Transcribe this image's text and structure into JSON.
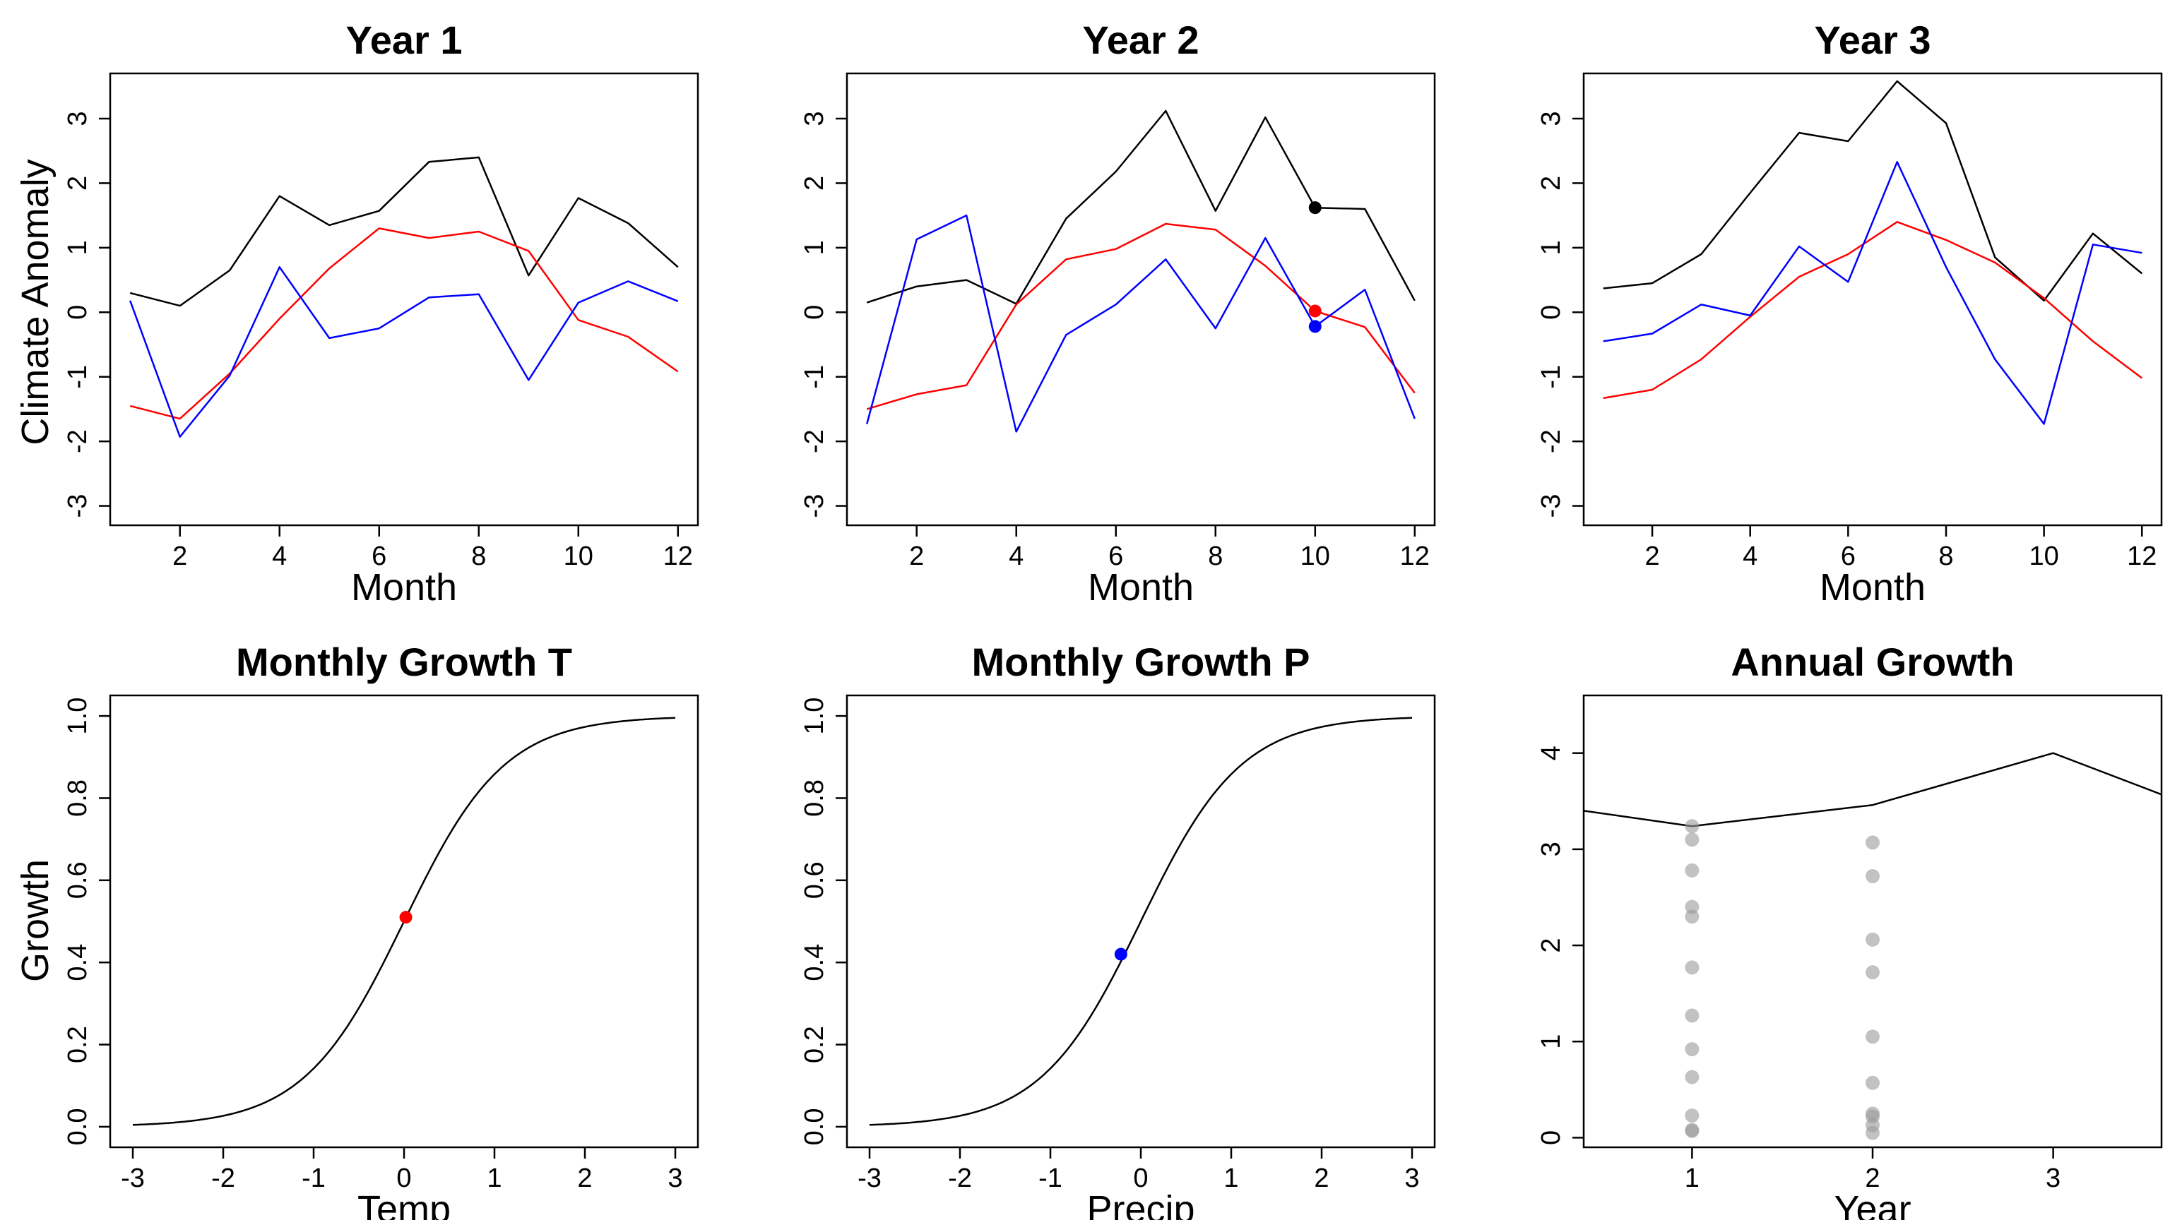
{
  "figure": {
    "ylabel_top": "Climate Anomaly",
    "ylabel_bottom": "Growth"
  },
  "chart_data": [
    {
      "type": "line",
      "title": "Year 1",
      "xlabel": "Month",
      "ylabel": "Climate Anomaly",
      "xlim": [
        0.6,
        12.4
      ],
      "ylim": [
        -3.3,
        3.7
      ],
      "xticks": [
        2,
        4,
        6,
        8,
        10,
        12
      ],
      "yticks": [
        -3,
        -2,
        -1,
        0,
        1,
        2,
        3
      ],
      "x": [
        1,
        2,
        3,
        4,
        5,
        6,
        7,
        8,
        9,
        10,
        11,
        12
      ],
      "series": [
        {
          "color": "#000000",
          "values": [
            0.3,
            0.1,
            0.65,
            1.8,
            1.35,
            1.57,
            2.33,
            2.4,
            0.57,
            1.77,
            1.38,
            0.7
          ]
        },
        {
          "color": "#ff0000",
          "values": [
            -1.45,
            -1.65,
            -0.95,
            -0.1,
            0.68,
            1.3,
            1.15,
            1.25,
            0.95,
            -0.12,
            -0.38,
            -0.92
          ]
        },
        {
          "color": "#0000ff",
          "values": [
            0.18,
            -1.93,
            -0.98,
            0.7,
            -0.4,
            -0.25,
            0.23,
            0.28,
            -1.05,
            0.15,
            0.48,
            0.17
          ]
        }
      ],
      "points": []
    },
    {
      "type": "line",
      "title": "Year 2",
      "xlabel": "Month",
      "ylabel": "",
      "xlim": [
        0.6,
        12.4
      ],
      "ylim": [
        -3.3,
        3.7
      ],
      "xticks": [
        2,
        4,
        6,
        8,
        10,
        12
      ],
      "yticks": [
        -3,
        -2,
        -1,
        0,
        1,
        2,
        3
      ],
      "x": [
        1,
        2,
        3,
        4,
        5,
        6,
        7,
        8,
        9,
        10,
        11,
        12
      ],
      "series": [
        {
          "color": "#000000",
          "values": [
            0.15,
            0.4,
            0.5,
            0.13,
            1.45,
            2.18,
            3.12,
            1.57,
            3.02,
            1.62,
            1.6,
            0.18
          ]
        },
        {
          "color": "#ff0000",
          "values": [
            -1.5,
            -1.27,
            -1.13,
            0.12,
            0.82,
            0.98,
            1.37,
            1.28,
            0.72,
            0.02,
            -0.23,
            -1.25
          ]
        },
        {
          "color": "#0000ff",
          "values": [
            -1.73,
            1.13,
            1.5,
            -1.85,
            -0.35,
            0.12,
            0.82,
            -0.25,
            1.15,
            -0.22,
            0.35,
            -1.65
          ]
        }
      ],
      "points": [
        {
          "x": 10,
          "y": 1.62,
          "color": "#000000"
        },
        {
          "x": 10,
          "y": 0.02,
          "color": "#ff0000"
        },
        {
          "x": 10,
          "y": -0.22,
          "color": "#0000ff"
        }
      ]
    },
    {
      "type": "line",
      "title": "Year 3",
      "xlabel": "Month",
      "ylabel": "",
      "xlim": [
        0.6,
        12.4
      ],
      "ylim": [
        -3.3,
        3.7
      ],
      "xticks": [
        2,
        4,
        6,
        8,
        10,
        12
      ],
      "yticks": [
        -3,
        -2,
        -1,
        0,
        1,
        2,
        3
      ],
      "x": [
        1,
        2,
        3,
        4,
        5,
        6,
        7,
        8,
        9,
        10,
        11,
        12
      ],
      "series": [
        {
          "color": "#000000",
          "values": [
            0.37,
            0.45,
            0.9,
            1.85,
            2.78,
            2.65,
            3.58,
            2.93,
            0.85,
            0.18,
            1.22,
            0.6
          ]
        },
        {
          "color": "#ff0000",
          "values": [
            -1.33,
            -1.2,
            -0.73,
            -0.07,
            0.55,
            0.9,
            1.4,
            1.12,
            0.77,
            0.22,
            -0.45,
            -1.02
          ]
        },
        {
          "color": "#0000ff",
          "values": [
            -0.45,
            -0.33,
            0.12,
            -0.05,
            1.02,
            0.47,
            2.33,
            0.7,
            -0.73,
            -1.73,
            1.05,
            0.92
          ]
        }
      ],
      "points": []
    },
    {
      "type": "line",
      "title": "Monthly Growth T",
      "xlabel": "Temp",
      "ylabel": "Growth",
      "xlim": [
        -3.25,
        3.25
      ],
      "ylim": [
        -0.05,
        1.05
      ],
      "xticks": [
        -3,
        -2,
        -1,
        0,
        1,
        2,
        3
      ],
      "yticks": [
        0.0,
        0.2,
        0.4,
        0.6,
        0.8,
        1.0
      ],
      "ytick_labels": [
        "0.0",
        "0.2",
        "0.4",
        "0.6",
        "0.8",
        "1.0"
      ],
      "curve": {
        "model": "logistic",
        "slope": 1.8,
        "from": -3,
        "to": 3
      },
      "points": [
        {
          "x": 0.02,
          "y": 0.51,
          "color": "#ff0000"
        }
      ]
    },
    {
      "type": "line",
      "title": "Monthly Growth P",
      "xlabel": "Precip",
      "ylabel": "",
      "xlim": [
        -3.25,
        3.25
      ],
      "ylim": [
        -0.05,
        1.05
      ],
      "xticks": [
        -3,
        -2,
        -1,
        0,
        1,
        2,
        3
      ],
      "yticks": [
        0.0,
        0.2,
        0.4,
        0.6,
        0.8,
        1.0
      ],
      "ytick_labels": [
        "0.0",
        "0.2",
        "0.4",
        "0.6",
        "0.8",
        "1.0"
      ],
      "curve": {
        "model": "logistic",
        "slope": 1.8,
        "from": -3,
        "to": 3
      },
      "points": [
        {
          "x": -0.22,
          "y": 0.42,
          "color": "#0000ff"
        }
      ]
    },
    {
      "type": "scatter",
      "title": "Annual Growth",
      "xlabel": "Year",
      "ylabel": "",
      "xlim": [
        0.4,
        3.6
      ],
      "ylim": [
        -0.1,
        4.6
      ],
      "xticks": [
        1,
        2,
        3
      ],
      "yticks": [
        0,
        1,
        2,
        3,
        4
      ],
      "line": {
        "color": "#000000",
        "x": [
          0.4,
          1,
          2,
          3,
          3.6
        ],
        "y": [
          3.4,
          3.24,
          3.46,
          4.0,
          3.57
        ]
      },
      "scatter": {
        "color": "#999999",
        "points": [
          [
            1,
            3.24
          ],
          [
            1,
            3.1
          ],
          [
            1,
            2.78
          ],
          [
            1,
            2.4
          ],
          [
            1,
            2.3
          ],
          [
            1,
            1.77
          ],
          [
            1,
            1.27
          ],
          [
            1,
            0.92
          ],
          [
            1,
            0.63
          ],
          [
            1,
            0.23
          ],
          [
            1,
            0.08
          ],
          [
            1,
            0.07
          ],
          [
            2,
            3.07
          ],
          [
            2,
            2.72
          ],
          [
            2,
            2.06
          ],
          [
            2,
            1.72
          ],
          [
            2,
            1.05
          ],
          [
            2,
            0.57
          ],
          [
            2,
            0.25
          ],
          [
            2,
            0.22
          ],
          [
            2,
            0.13
          ],
          [
            2,
            0.05
          ]
        ]
      }
    }
  ]
}
